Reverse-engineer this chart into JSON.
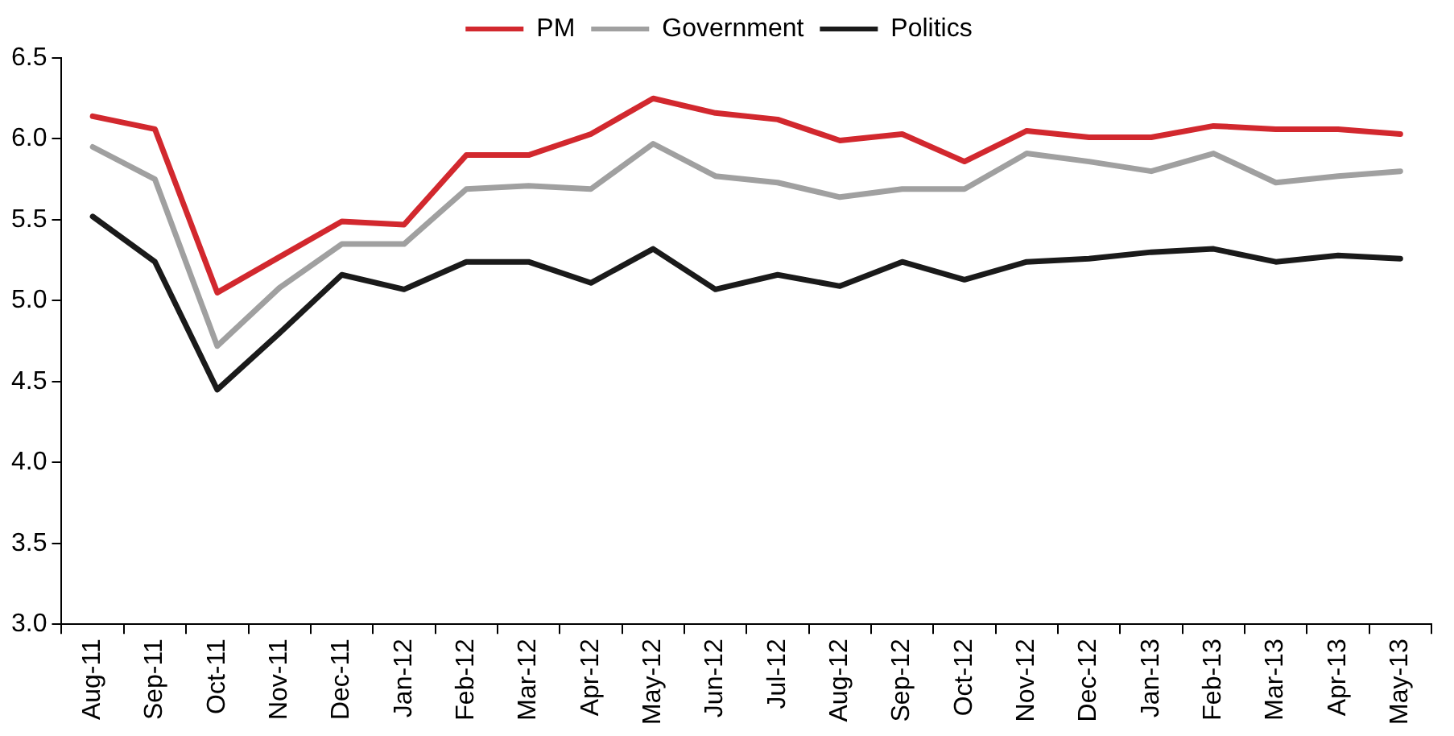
{
  "chart_data": {
    "type": "line",
    "categories": [
      "Aug-11",
      "Sep-11",
      "Oct-11",
      "Nov-11",
      "Dec-11",
      "Jan-12",
      "Feb-12",
      "Mar-12",
      "Apr-12",
      "May-12",
      "Jun-12",
      "Jul-12",
      "Aug-12",
      "Sep-12",
      "Oct-12",
      "Nov-12",
      "Dec-12",
      "Jan-13",
      "Feb-13",
      "Mar-13",
      "Apr-13",
      "May-13"
    ],
    "series": [
      {
        "name": "PM",
        "color": "#d2282e",
        "values": [
          6.14,
          6.06,
          5.05,
          5.27,
          5.49,
          5.47,
          5.9,
          5.9,
          6.03,
          6.25,
          6.16,
          6.12,
          5.99,
          6.03,
          5.86,
          6.05,
          6.01,
          6.01,
          6.08,
          6.06,
          6.06,
          6.03
        ]
      },
      {
        "name": "Government",
        "color": "#a0a0a0",
        "values": [
          5.95,
          5.75,
          4.72,
          5.08,
          5.35,
          5.35,
          5.69,
          5.71,
          5.69,
          5.97,
          5.77,
          5.73,
          5.64,
          5.69,
          5.69,
          5.91,
          5.86,
          5.8,
          5.91,
          5.73,
          5.77,
          5.8
        ]
      },
      {
        "name": "Politics",
        "color": "#1a1a1a",
        "values": [
          5.52,
          5.24,
          4.45,
          4.8,
          5.16,
          5.07,
          5.24,
          5.24,
          5.11,
          5.32,
          5.07,
          5.16,
          5.09,
          5.24,
          5.13,
          5.24,
          5.26,
          5.3,
          5.32,
          5.24,
          5.28,
          5.26
        ]
      }
    ],
    "ylim": [
      3.0,
      6.5
    ],
    "yticks": [
      {
        "value": 3,
        "label": "3.0"
      },
      {
        "value": 3.5,
        "label": "3.5"
      },
      {
        "value": 4,
        "label": "4.0"
      },
      {
        "value": 4.5,
        "label": "4.5"
      },
      {
        "value": 5,
        "label": "5.0"
      },
      {
        "value": 5.5,
        "label": "5.5"
      },
      {
        "value": 6,
        "label": "6.0"
      },
      {
        "value": 6.5,
        "label": "6.5"
      }
    ],
    "grid": false,
    "legend": "top",
    "marker": "none",
    "line_style": "solid"
  }
}
